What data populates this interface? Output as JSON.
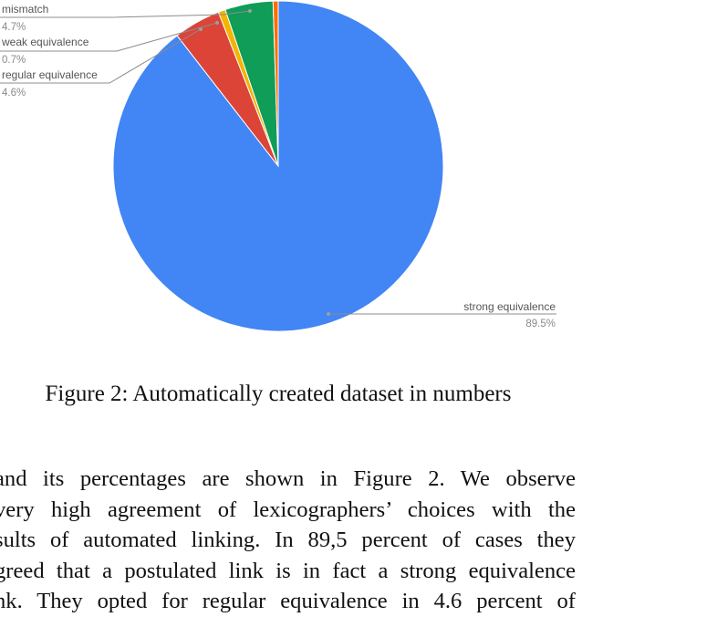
{
  "chart_data": {
    "type": "pie",
    "start_angle_deg": 0,
    "direction": "clockwise",
    "slices": [
      {
        "label": "strong equivalence",
        "value": 89.5,
        "pct_label": "89.5%",
        "color": "#4285f4"
      },
      {
        "label": "regular equivalence",
        "value": 4.6,
        "pct_label": "4.6%",
        "color": "#db4437"
      },
      {
        "label": "weak equivalence",
        "value": 0.7,
        "pct_label": "0.7%",
        "color": "#f4b400"
      },
      {
        "label": "mismatch",
        "value": 4.7,
        "pct_label": "4.7%",
        "color": "#0f9d58"
      },
      {
        "label": "",
        "value": 0.5,
        "pct_label": "",
        "color": "#ff6d01"
      }
    ]
  },
  "caption": "Figure 2: Automatically created dataset in numbers",
  "body_lines": [
    "and its percentages are shown in Figure 2. We observe",
    "very high agreement of lexicographers’ choices with the",
    "sults of automated linking. In 89,5 percent of cases they",
    "greed that a postulated link is in fact a strong equivalence",
    "nk. They opted for regular equivalence in 4.6 percent of"
  ]
}
